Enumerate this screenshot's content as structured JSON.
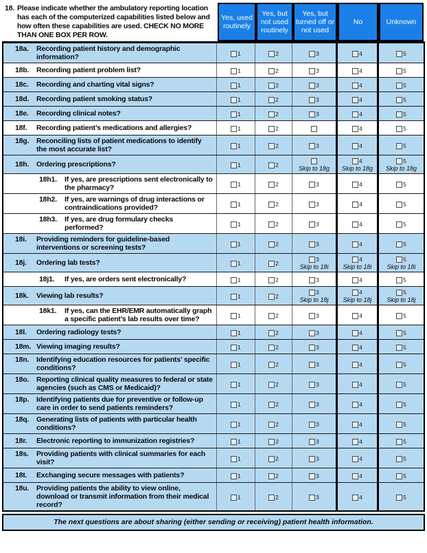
{
  "question": {
    "number": "18.",
    "text": "Please indicate whether the ambulatory reporting location has each of the computerized capabilities listed below and how often these capabilities are used. CHECK NO MORE THAN ONE BOX PER ROW."
  },
  "table": {
    "columns": [
      "Yes, used routinely",
      "Yes, but not used routinely",
      "Yes, but turned off or not used",
      "No",
      "Unknown"
    ],
    "rows": [
      {
        "id": "18a.",
        "label": "Recording patient history and demographic information?",
        "shaded": true,
        "cells": [
          {
            "num": "1"
          },
          {
            "num": "2"
          },
          {
            "num": "3"
          },
          {
            "num": "4"
          },
          {
            "num": "5"
          }
        ]
      },
      {
        "id": "18b.",
        "label": "Recording patient problem list?",
        "shaded": false,
        "cells": [
          {
            "num": "1"
          },
          {
            "num": "2"
          },
          {
            "num": "3"
          },
          {
            "num": "4"
          },
          {
            "num": "5"
          }
        ]
      },
      {
        "id": "18c.",
        "label": "Recording and charting vital signs?",
        "shaded": true,
        "cells": [
          {
            "num": "1"
          },
          {
            "num": "2"
          },
          {
            "num": "3"
          },
          {
            "num": "4"
          },
          {
            "num": "5"
          }
        ]
      },
      {
        "id": "18d.",
        "label": "Recording patient smoking status?",
        "shaded": true,
        "cells": [
          {
            "num": "1"
          },
          {
            "num": "2"
          },
          {
            "num": "3"
          },
          {
            "num": "4"
          },
          {
            "num": "5"
          }
        ]
      },
      {
        "id": "18e.",
        "label": "Recording clinical notes?",
        "shaded": true,
        "cells": [
          {
            "num": "1"
          },
          {
            "num": "2"
          },
          {
            "num": "3"
          },
          {
            "num": "4"
          },
          {
            "num": "5"
          }
        ]
      },
      {
        "id": "18f.",
        "label": "Recording patient’s medications and allergies?",
        "shaded": false,
        "cells": [
          {
            "num": "1"
          },
          {
            "num": "2"
          },
          {
            "num": ""
          },
          {
            "num": "4"
          },
          {
            "num": "5"
          }
        ]
      },
      {
        "id": "18g.",
        "label": "Reconciling lists of patient medications to identify the most accurate list?",
        "shaded": true,
        "cells": [
          {
            "num": "1"
          },
          {
            "num": "2"
          },
          {
            "num": "3"
          },
          {
            "num": "4"
          },
          {
            "num": "5"
          }
        ]
      },
      {
        "id": "18h.",
        "label": "Ordering prescriptions?",
        "shaded": true,
        "cells": [
          {
            "num": "1"
          },
          {
            "num": "2"
          },
          {
            "num": "",
            "skip": "Skip to 18g"
          },
          {
            "num": "4",
            "skip": "Skip to 18g"
          },
          {
            "num": "5",
            "skip": "Skip to 18g"
          }
        ]
      },
      {
        "id": "18h1.",
        "label": "If yes, are prescriptions sent electronically to the pharmacy?",
        "shaded": false,
        "sub": true,
        "cells": [
          {
            "num": "1"
          },
          {
            "num": "2"
          },
          {
            "num": "3"
          },
          {
            "num": "4"
          },
          {
            "num": "5"
          }
        ]
      },
      {
        "id": "18h2.",
        "label": "If yes, are warnings of drug interactions or contraindications provided?",
        "shaded": false,
        "sub": true,
        "cells": [
          {
            "num": "1"
          },
          {
            "num": "2"
          },
          {
            "num": "3"
          },
          {
            "num": "4"
          },
          {
            "num": "5"
          }
        ]
      },
      {
        "id": "18h3.",
        "label": "If yes, are drug formulary checks performed?",
        "shaded": false,
        "sub": true,
        "cells": [
          {
            "num": "1"
          },
          {
            "num": "2"
          },
          {
            "num": "3"
          },
          {
            "num": "4"
          },
          {
            "num": "5"
          }
        ]
      },
      {
        "id": "18i.",
        "label": "Providing reminders for guideline-based interventions or screening tests?",
        "shaded": true,
        "cells": [
          {
            "num": "1"
          },
          {
            "num": "2"
          },
          {
            "num": "3"
          },
          {
            "num": "4"
          },
          {
            "num": "5"
          }
        ]
      },
      {
        "id": "18j.",
        "label": "Ordering lab tests?",
        "shaded": true,
        "cells": [
          {
            "num": "1"
          },
          {
            "num": "2"
          },
          {
            "num": "3",
            "skip": "Skip to 18i"
          },
          {
            "num": "4",
            "skip": "Skip to 18i"
          },
          {
            "num": "5",
            "skip": "Skip to 18i"
          }
        ]
      },
      {
        "id": "18j1.",
        "label": "If yes, are orders sent electronically?",
        "shaded": false,
        "sub": true,
        "cells": [
          {
            "num": "1"
          },
          {
            "num": "2"
          },
          {
            "num": "3"
          },
          {
            "num": "4"
          },
          {
            "num": "5"
          }
        ]
      },
      {
        "id": "18k.",
        "label": "Viewing lab results?",
        "shaded": true,
        "cells": [
          {
            "num": "1"
          },
          {
            "num": "2"
          },
          {
            "num": "3",
            "skip": "Skip to 18j"
          },
          {
            "num": "4",
            "skip": "Skip to 18j"
          },
          {
            "num": "5",
            "skip": "Skip to 18j"
          }
        ]
      },
      {
        "id": "18k1.",
        "label": "If yes, can the EHR/EMR automatically graph a specific patient’s lab results over time?",
        "shaded": false,
        "sub": true,
        "cells": [
          {
            "num": "1"
          },
          {
            "num": "2"
          },
          {
            "num": "3"
          },
          {
            "num": "4"
          },
          {
            "num": "5"
          }
        ]
      },
      {
        "id": "18l.",
        "label": "Ordering radiology tests?",
        "shaded": true,
        "cells": [
          {
            "num": "1"
          },
          {
            "num": "2"
          },
          {
            "num": "3"
          },
          {
            "num": "4"
          },
          {
            "num": "5"
          }
        ]
      },
      {
        "id": "18m.",
        "label": "Viewing imaging results?",
        "shaded": true,
        "cells": [
          {
            "num": "1"
          },
          {
            "num": "2"
          },
          {
            "num": "3"
          },
          {
            "num": "4"
          },
          {
            "num": "5"
          }
        ]
      },
      {
        "id": "18n.",
        "label": "Identifying education resources for patients’ specific conditions?",
        "shaded": true,
        "cells": [
          {
            "num": "1"
          },
          {
            "num": "2"
          },
          {
            "num": "3"
          },
          {
            "num": "4"
          },
          {
            "num": "5"
          }
        ]
      },
      {
        "id": "18o.",
        "label": "Reporting clinical quality measures to federal or state agencies (such as CMS or Medicaid)?",
        "shaded": true,
        "cells": [
          {
            "num": "1"
          },
          {
            "num": "2"
          },
          {
            "num": "3"
          },
          {
            "num": "4"
          },
          {
            "num": "5"
          }
        ]
      },
      {
        "id": "18p.",
        "label": "Identifying patients due for preventive or follow-up care in order to send patients reminders?",
        "shaded": true,
        "cells": [
          {
            "num": "1"
          },
          {
            "num": "2"
          },
          {
            "num": "3"
          },
          {
            "num": "4"
          },
          {
            "num": "5"
          }
        ]
      },
      {
        "id": "18q.",
        "label": "Generating lists of patients with particular health conditions?",
        "shaded": true,
        "cells": [
          {
            "num": "1"
          },
          {
            "num": "2"
          },
          {
            "num": "3"
          },
          {
            "num": "4"
          },
          {
            "num": "5"
          }
        ]
      },
      {
        "id": "18r.",
        "label": "Electronic reporting to immunization registries?",
        "shaded": true,
        "cells": [
          {
            "num": "1"
          },
          {
            "num": "2"
          },
          {
            "num": "3"
          },
          {
            "num": "4"
          },
          {
            "num": "5"
          }
        ]
      },
      {
        "id": "18s.",
        "label": "Providing patients with clinical summaries for each visit?",
        "shaded": true,
        "cells": [
          {
            "num": "1"
          },
          {
            "num": "2"
          },
          {
            "num": "3"
          },
          {
            "num": "4"
          },
          {
            "num": "5"
          }
        ]
      },
      {
        "id": "18t.",
        "label": "Exchanging secure messages with patients?",
        "shaded": true,
        "cells": [
          {
            "num": "1"
          },
          {
            "num": "2"
          },
          {
            "num": "3"
          },
          {
            "num": "4"
          },
          {
            "num": "5"
          }
        ]
      },
      {
        "id": "18u.",
        "label": "Providing patients the ability to view online, download or transmit information from their medical record?",
        "shaded": true,
        "cells": [
          {
            "num": "1"
          },
          {
            "num": "2"
          },
          {
            "num": "3"
          },
          {
            "num": "4"
          },
          {
            "num": "5"
          }
        ]
      }
    ]
  },
  "footer": "The next questions are about sharing (either sending or receiving) patient health information.",
  "colors": {
    "header_blue": "#1a80e8",
    "row_blue": "#b6d9f2"
  }
}
